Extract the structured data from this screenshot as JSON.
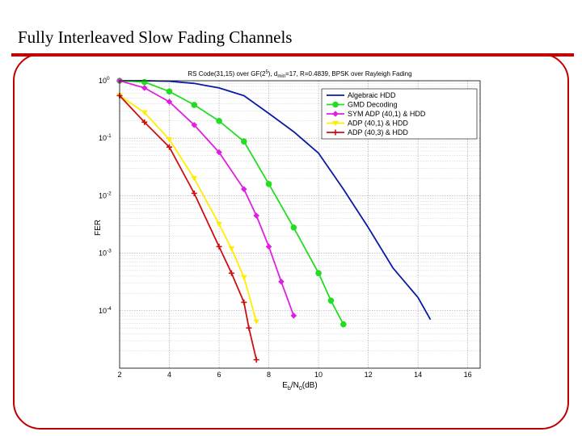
{
  "slide": {
    "title": "Fully Interleaved Slow Fading Channels",
    "accent_color": "#c00000"
  },
  "chart_data": {
    "type": "line",
    "title": "RS Code(31,15) over GF(2^5), d_min=17, R=0.4839, BPSK over Rayleigh Fading",
    "title_parts": {
      "a": "RS Code(31,15) over GF(2",
      "sup": "5",
      "b": "), d",
      "sub": "min",
      "c": "=17, R=0.4839, BPSK over Rayleigh Fading"
    },
    "xlabel": "Eb/N0(dB)",
    "xlabel_parts": {
      "a": "E",
      "sub1": "b",
      "b": "/N",
      "sub2": "0",
      "c": "(dB)"
    },
    "ylabel": "FER",
    "xlim": [
      2,
      16.5
    ],
    "ylim": [
      1e-05,
      1
    ],
    "yscale": "log",
    "grid": true,
    "legend": "top-right",
    "xticks": [
      "2",
      "4",
      "6",
      "8",
      "10",
      "12",
      "14",
      "16"
    ],
    "yticks": [
      {
        "base": "10",
        "exp": "0"
      },
      {
        "base": "10",
        "exp": "-1"
      },
      {
        "base": "10",
        "exp": "-2"
      },
      {
        "base": "10",
        "exp": "-3"
      },
      {
        "base": "10",
        "exp": "-4"
      }
    ],
    "series": [
      {
        "name": "Algebraic HDD",
        "color": "#0a1aa8",
        "marker": "none",
        "x": [
          2,
          3,
          4,
          5,
          6,
          7,
          8,
          9,
          10,
          11,
          12,
          13,
          14,
          14.5
        ],
        "y": [
          1,
          1,
          0.98,
          0.9,
          0.75,
          0.55,
          0.27,
          0.13,
          0.055,
          0.013,
          0.0028,
          0.00055,
          0.00017,
          7e-05
        ]
      },
      {
        "name": "GMD Decoding",
        "color": "#22dd22",
        "marker": "circle",
        "x": [
          2,
          3,
          4,
          5,
          6,
          7,
          8,
          9,
          10,
          10.5,
          11
        ],
        "y": [
          1,
          0.95,
          0.65,
          0.38,
          0.2,
          0.088,
          0.016,
          0.0028,
          0.00045,
          0.00015,
          5.8e-05
        ]
      },
      {
        "name": "SYM ADP (40,1) & HDD",
        "color": "#e020e0",
        "marker": "diamond",
        "x": [
          2,
          3,
          4,
          5,
          6,
          7,
          7.5,
          8,
          8.5,
          9
        ],
        "y": [
          1,
          0.75,
          0.43,
          0.17,
          0.057,
          0.013,
          0.0045,
          0.0013,
          0.00032,
          8.2e-05
        ]
      },
      {
        "name": "ADP (40,1) & HDD",
        "color": "#ffee00",
        "marker": "triangle",
        "x": [
          2,
          3,
          4,
          5,
          6,
          6.5,
          7,
          7.5
        ],
        "y": [
          0.55,
          0.28,
          0.095,
          0.02,
          0.0032,
          0.0012,
          0.00038,
          6.5e-05
        ]
      },
      {
        "name": "ADP (40,3) & HDD",
        "color": "#cc1010",
        "marker": "cross",
        "x": [
          2,
          3,
          4,
          5,
          6,
          6.5,
          7,
          7.2,
          7.5
        ],
        "y": [
          0.55,
          0.19,
          0.07,
          0.011,
          0.0013,
          0.00045,
          0.00014,
          5e-05,
          1.4e-05
        ]
      }
    ]
  }
}
